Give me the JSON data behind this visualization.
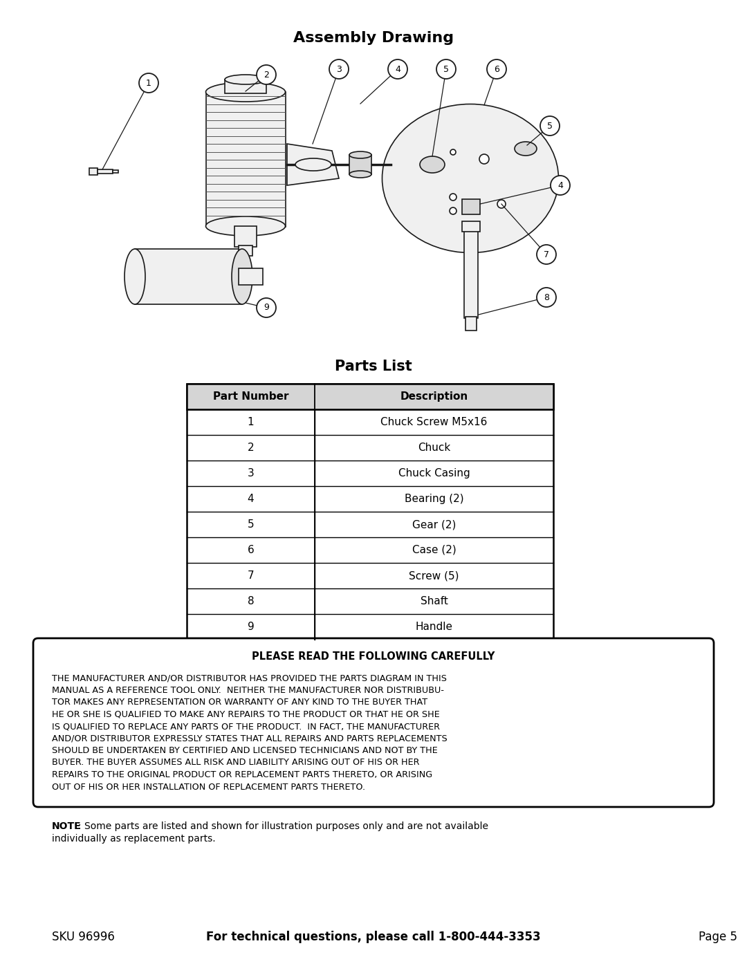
{
  "title_assembly": "Assembly Drawing",
  "title_parts": "Parts List",
  "table_headers": [
    "Part Number",
    "Description"
  ],
  "table_rows": [
    [
      "1",
      "Chuck Screw M5x16"
    ],
    [
      "2",
      "Chuck"
    ],
    [
      "3",
      "Chuck Casing"
    ],
    [
      "4",
      "Bearing (2)"
    ],
    [
      "5",
      "Gear (2)"
    ],
    [
      "6",
      "Case (2)"
    ],
    [
      "7",
      "Screw (5)"
    ],
    [
      "8",
      "Shaft"
    ],
    [
      "9",
      "Handle"
    ]
  ],
  "warning_title": "PLEASE READ THE FOLLOWING CAREFULLY",
  "warning_text_lines": [
    "THE MANUFACTURER AND/OR DISTRIBUTOR HAS PROVIDED THE PARTS DIAGRAM IN THIS",
    "MANUAL AS A REFERENCE TOOL ONLY.  NEITHER THE MANUFACTURER NOR DISTRIBUBU-",
    "TOR MAKES ANY REPRESENTATION OR WARRANTY OF ANY KIND TO THE BUYER THAT",
    "HE OR SHE IS QUALIFIED TO MAKE ANY REPAIRS TO THE PRODUCT OR THAT HE OR SHE",
    "IS QUALIFIED TO REPLACE ANY PARTS OF THE PRODUCT.  IN FACT, THE MANUFACTURER",
    "AND/OR DISTRIBUTOR EXPRESSLY STATES THAT ALL REPAIRS AND PARTS REPLACEMENTS",
    "SHOULD BE UNDERTAKEN BY CERTIFIED AND LICENSED TECHNICIANS AND NOT BY THE",
    "BUYER. THE BUYER ASSUMES ALL RISK AND LIABILITY ARISING OUT OF HIS OR HER",
    "REPAIRS TO THE ORIGINAL PRODUCT OR REPLACEMENT PARTS THERETO, OR ARISING",
    "OUT OF HIS OR HER INSTALLATION OF REPLACEMENT PARTS THERETO."
  ],
  "note_line1": "NOTE: Some parts are listed and shown for illustration purposes only and are not available",
  "note_line2": "individually as replacement parts.",
  "footer_left": "SKU 96996",
  "footer_center": "For technical questions, please call 1-800-444-3353",
  "footer_right": "Page 5",
  "bg_color": "#ffffff",
  "text_color": "#000000"
}
